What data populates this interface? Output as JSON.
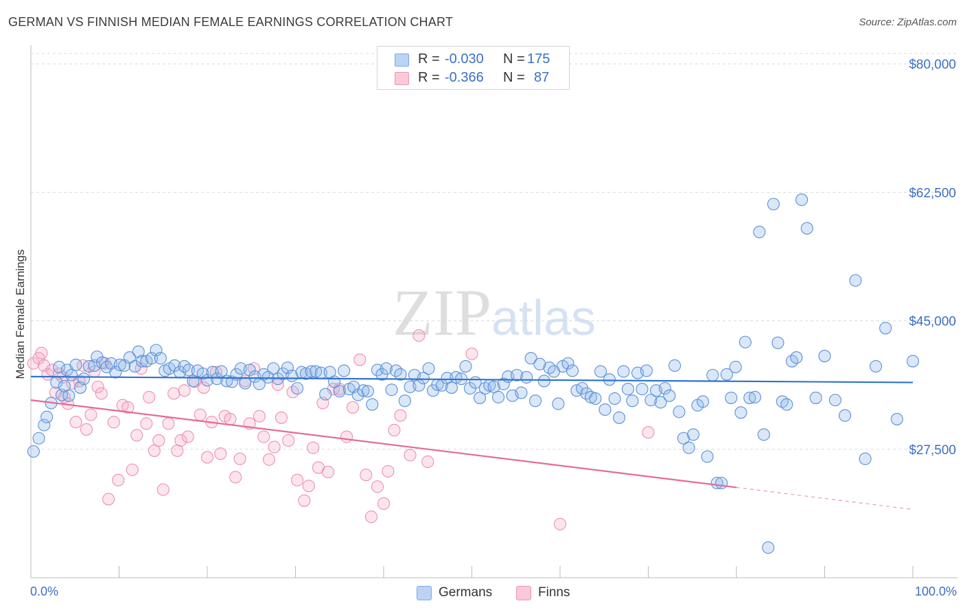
{
  "header": {
    "title": "GERMAN VS FINNISH MEDIAN FEMALE EARNINGS CORRELATION CHART",
    "source": "Source: ZipAtlas.com"
  },
  "legend": {
    "rows": [
      {
        "r_label": "R =",
        "r_value": "-0.030",
        "n_label": "N =",
        "n_value": "175",
        "color": "#a9c8f0"
      },
      {
        "r_label": "R =",
        "r_value": "-0.366",
        "n_label": "N =",
        "n_value": "87",
        "color": "#f5b8cb"
      }
    ],
    "series_names": [
      "Germans",
      "Finns"
    ]
  },
  "watermark": "ZIPatlas",
  "colors": {
    "blue_fill": "rgba(147,185,235,0.35)",
    "blue_stroke": "#5b8fd6",
    "blue_line": "#2f72cf",
    "pink_fill": "rgba(244,170,195,0.30)",
    "pink_stroke": "#ec8fae",
    "pink_line": "#e4699a",
    "tick_text": "#3a6fc4",
    "grid": "#d9d9d9"
  },
  "chart_data": {
    "type": "scatter",
    "title": "GERMAN VS FINNISH MEDIAN FEMALE EARNINGS CORRELATION CHART",
    "xlabel": "",
    "ylabel": "Median Female Earnings",
    "xlim": [
      0,
      100
    ],
    "ylim": [
      10000,
      81700
    ],
    "x_tick_labels": [
      "0.0%",
      "100.0%"
    ],
    "y_ticks": [
      27500,
      45000,
      62500,
      80000
    ],
    "y_tick_labels": [
      "$27,500",
      "$45,000",
      "$62,500",
      "$80,000"
    ],
    "grid": true,
    "legend_position": "top-center",
    "series": [
      {
        "name": "Germans",
        "r": -0.03,
        "n": 175,
        "trend": {
          "x": [
            0,
            100
          ],
          "y": [
            37400,
            36600
          ]
        },
        "points": [
          [
            0.3,
            27200
          ],
          [
            0.9,
            29000
          ],
          [
            1.5,
            30800
          ],
          [
            1.8,
            31900
          ],
          [
            2.3,
            33800
          ],
          [
            2.9,
            36600
          ],
          [
            3.2,
            38700
          ],
          [
            3.5,
            34900
          ],
          [
            3.8,
            36100
          ],
          [
            4.1,
            38300
          ],
          [
            4.3,
            34800
          ],
          [
            4.6,
            37600
          ],
          [
            5.1,
            39000
          ],
          [
            5.6,
            35900
          ],
          [
            6.0,
            37100
          ],
          [
            6.6,
            38800
          ],
          [
            7.2,
            38900
          ],
          [
            7.5,
            40100
          ],
          [
            8.1,
            39300
          ],
          [
            8.6,
            38700
          ],
          [
            9.1,
            39200
          ],
          [
            9.6,
            38000
          ],
          [
            10.1,
            39000
          ],
          [
            10.6,
            38900
          ],
          [
            11.2,
            40000
          ],
          [
            11.8,
            38800
          ],
          [
            12.2,
            40800
          ],
          [
            12.6,
            39500
          ],
          [
            13.1,
            39500
          ],
          [
            13.7,
            39900
          ],
          [
            14.2,
            41000
          ],
          [
            14.7,
            39900
          ],
          [
            15.2,
            38200
          ],
          [
            15.7,
            38500
          ],
          [
            16.3,
            38900
          ],
          [
            16.9,
            38000
          ],
          [
            17.4,
            38800
          ],
          [
            17.9,
            38300
          ],
          [
            18.4,
            36800
          ],
          [
            18.9,
            38200
          ],
          [
            19.5,
            37800
          ],
          [
            20.0,
            36900
          ],
          [
            20.6,
            38000
          ],
          [
            21.1,
            37100
          ],
          [
            21.6,
            38100
          ],
          [
            22.2,
            36800
          ],
          [
            22.8,
            36700
          ],
          [
            23.3,
            37700
          ],
          [
            23.8,
            38500
          ],
          [
            24.3,
            36500
          ],
          [
            24.8,
            38300
          ],
          [
            25.4,
            37400
          ],
          [
            25.9,
            36400
          ],
          [
            26.4,
            37700
          ],
          [
            26.9,
            37300
          ],
          [
            27.5,
            38500
          ],
          [
            28.0,
            37100
          ],
          [
            28.6,
            37800
          ],
          [
            29.1,
            38600
          ],
          [
            29.6,
            37500
          ],
          [
            30.2,
            35800
          ],
          [
            30.7,
            38000
          ],
          [
            31.2,
            37800
          ],
          [
            31.8,
            38100
          ],
          [
            32.3,
            38100
          ],
          [
            32.9,
            37900
          ],
          [
            33.4,
            35000
          ],
          [
            33.9,
            38000
          ],
          [
            34.4,
            36700
          ],
          [
            35.0,
            35400
          ],
          [
            35.5,
            38200
          ],
          [
            36.1,
            35700
          ],
          [
            36.6,
            36000
          ],
          [
            37.1,
            34900
          ],
          [
            37.7,
            35500
          ],
          [
            38.2,
            35400
          ],
          [
            38.7,
            33600
          ],
          [
            39.3,
            38300
          ],
          [
            39.8,
            37700
          ],
          [
            40.3,
            38500
          ],
          [
            40.9,
            35600
          ],
          [
            41.4,
            38200
          ],
          [
            41.9,
            37700
          ],
          [
            42.4,
            34100
          ],
          [
            43.0,
            36000
          ],
          [
            43.5,
            37600
          ],
          [
            44.0,
            36200
          ],
          [
            44.5,
            37200
          ],
          [
            45.1,
            38500
          ],
          [
            45.6,
            35500
          ],
          [
            46.1,
            36300
          ],
          [
            46.6,
            36200
          ],
          [
            47.2,
            37200
          ],
          [
            47.7,
            35900
          ],
          [
            48.2,
            37300
          ],
          [
            48.8,
            37100
          ],
          [
            49.3,
            38800
          ],
          [
            49.8,
            35800
          ],
          [
            50.4,
            36600
          ],
          [
            50.9,
            34500
          ],
          [
            51.5,
            35800
          ],
          [
            52.0,
            36200
          ],
          [
            52.5,
            36000
          ],
          [
            53.0,
            34600
          ],
          [
            53.6,
            36400
          ],
          [
            54.1,
            37400
          ],
          [
            54.6,
            34800
          ],
          [
            55.1,
            37600
          ],
          [
            55.6,
            35200
          ],
          [
            56.2,
            37300
          ],
          [
            56.7,
            39900
          ],
          [
            57.2,
            34100
          ],
          [
            57.7,
            39100
          ],
          [
            58.2,
            36800
          ],
          [
            58.8,
            38600
          ],
          [
            59.3,
            38100
          ],
          [
            59.8,
            33700
          ],
          [
            60.3,
            38800
          ],
          [
            60.9,
            39200
          ],
          [
            61.4,
            38200
          ],
          [
            61.9,
            35500
          ],
          [
            62.5,
            35800
          ],
          [
            63.0,
            35100
          ],
          [
            63.5,
            34600
          ],
          [
            64.0,
            34400
          ],
          [
            64.6,
            38100
          ],
          [
            65.1,
            32900
          ],
          [
            65.6,
            37000
          ],
          [
            66.2,
            34400
          ],
          [
            66.7,
            31800
          ],
          [
            67.2,
            38100
          ],
          [
            67.7,
            35700
          ],
          [
            68.2,
            34100
          ],
          [
            68.8,
            37900
          ],
          [
            69.3,
            35700
          ],
          [
            69.8,
            38200
          ],
          [
            70.3,
            34200
          ],
          [
            70.9,
            35500
          ],
          [
            71.4,
            33900
          ],
          [
            71.9,
            35800
          ],
          [
            72.4,
            34800
          ],
          [
            73.0,
            38900
          ],
          [
            73.5,
            32600
          ],
          [
            74.0,
            29000
          ],
          [
            74.6,
            27700
          ],
          [
            75.1,
            29500
          ],
          [
            75.6,
            33500
          ],
          [
            76.2,
            34000
          ],
          [
            76.7,
            26500
          ],
          [
            77.3,
            37600
          ],
          [
            77.8,
            22900
          ],
          [
            78.3,
            22900
          ],
          [
            78.9,
            37700
          ],
          [
            79.4,
            34500
          ],
          [
            79.9,
            38700
          ],
          [
            80.5,
            32500
          ],
          [
            81.0,
            42100
          ],
          [
            81.5,
            34500
          ],
          [
            82.1,
            34600
          ],
          [
            82.6,
            57100
          ],
          [
            83.1,
            29500
          ],
          [
            83.6,
            14100
          ],
          [
            84.2,
            60900
          ],
          [
            84.7,
            42000
          ],
          [
            85.2,
            34000
          ],
          [
            85.7,
            33600
          ],
          [
            86.3,
            39500
          ],
          [
            86.8,
            40000
          ],
          [
            87.4,
            61500
          ],
          [
            88.0,
            57600
          ],
          [
            89.0,
            34500
          ],
          [
            90.0,
            40200
          ],
          [
            91.2,
            34200
          ],
          [
            92.3,
            32100
          ],
          [
            93.5,
            50500
          ],
          [
            94.6,
            26200
          ],
          [
            95.8,
            38800
          ],
          [
            96.9,
            44000
          ],
          [
            98.2,
            31600
          ],
          [
            100.0,
            39500
          ]
        ]
      },
      {
        "name": "Finns",
        "r": -0.366,
        "n": 87,
        "trend": {
          "x": [
            0,
            80
          ],
          "y": [
            34200,
            22300
          ]
        },
        "trend_dashed": {
          "x": [
            80,
            100
          ],
          "y": [
            22300,
            19300
          ]
        },
        "points": [
          [
            0.3,
            39200
          ],
          [
            0.9,
            39900
          ],
          [
            1.2,
            40600
          ],
          [
            1.5,
            38900
          ],
          [
            1.9,
            37700
          ],
          [
            2.4,
            38300
          ],
          [
            2.8,
            35200
          ],
          [
            3.2,
            37800
          ],
          [
            3.6,
            37300
          ],
          [
            3.8,
            34600
          ],
          [
            4.2,
            33700
          ],
          [
            4.7,
            36500
          ],
          [
            5.1,
            31200
          ],
          [
            5.5,
            36800
          ],
          [
            5.9,
            38900
          ],
          [
            6.3,
            30200
          ],
          [
            6.8,
            32200
          ],
          [
            7.2,
            38100
          ],
          [
            7.6,
            36000
          ],
          [
            8.0,
            35100
          ],
          [
            8.4,
            39200
          ],
          [
            8.8,
            20700
          ],
          [
            9.4,
            31200
          ],
          [
            9.9,
            23300
          ],
          [
            10.4,
            33500
          ],
          [
            11.0,
            33200
          ],
          [
            11.5,
            24700
          ],
          [
            12.0,
            29400
          ],
          [
            12.5,
            38500
          ],
          [
            13.1,
            31000
          ],
          [
            13.4,
            34600
          ],
          [
            14.0,
            27300
          ],
          [
            14.5,
            28700
          ],
          [
            15.0,
            22000
          ],
          [
            15.6,
            31000
          ],
          [
            16.2,
            35100
          ],
          [
            16.6,
            27300
          ],
          [
            17.0,
            28700
          ],
          [
            17.4,
            35500
          ],
          [
            17.8,
            29200
          ],
          [
            18.6,
            36700
          ],
          [
            19.2,
            32200
          ],
          [
            19.6,
            35900
          ],
          [
            20.0,
            26400
          ],
          [
            20.5,
            31200
          ],
          [
            21.0,
            38000
          ],
          [
            21.5,
            26900
          ],
          [
            22.0,
            32000
          ],
          [
            22.6,
            31600
          ],
          [
            23.2,
            23700
          ],
          [
            23.7,
            26200
          ],
          [
            24.3,
            36800
          ],
          [
            24.8,
            31000
          ],
          [
            25.3,
            38500
          ],
          [
            25.9,
            32000
          ],
          [
            26.4,
            29200
          ],
          [
            27.0,
            26100
          ],
          [
            27.6,
            27800
          ],
          [
            28.0,
            36300
          ],
          [
            28.4,
            31800
          ],
          [
            29.2,
            28700
          ],
          [
            29.7,
            35300
          ],
          [
            30.2,
            23300
          ],
          [
            31.0,
            20500
          ],
          [
            31.5,
            22500
          ],
          [
            32.0,
            27700
          ],
          [
            32.6,
            25000
          ],
          [
            33.1,
            33800
          ],
          [
            33.7,
            24400
          ],
          [
            34.3,
            35700
          ],
          [
            35.0,
            35700
          ],
          [
            35.8,
            29200
          ],
          [
            36.5,
            33200
          ],
          [
            37.3,
            39700
          ],
          [
            38.0,
            24000
          ],
          [
            38.6,
            18300
          ],
          [
            39.3,
            22400
          ],
          [
            40.0,
            20100
          ],
          [
            40.5,
            24500
          ],
          [
            41.2,
            30100
          ],
          [
            41.9,
            32100
          ],
          [
            43.0,
            26700
          ],
          [
            44.0,
            43000
          ],
          [
            45.0,
            25800
          ],
          [
            50.0,
            40500
          ],
          [
            60.0,
            17300
          ],
          [
            70.0,
            29800
          ]
        ]
      }
    ]
  }
}
